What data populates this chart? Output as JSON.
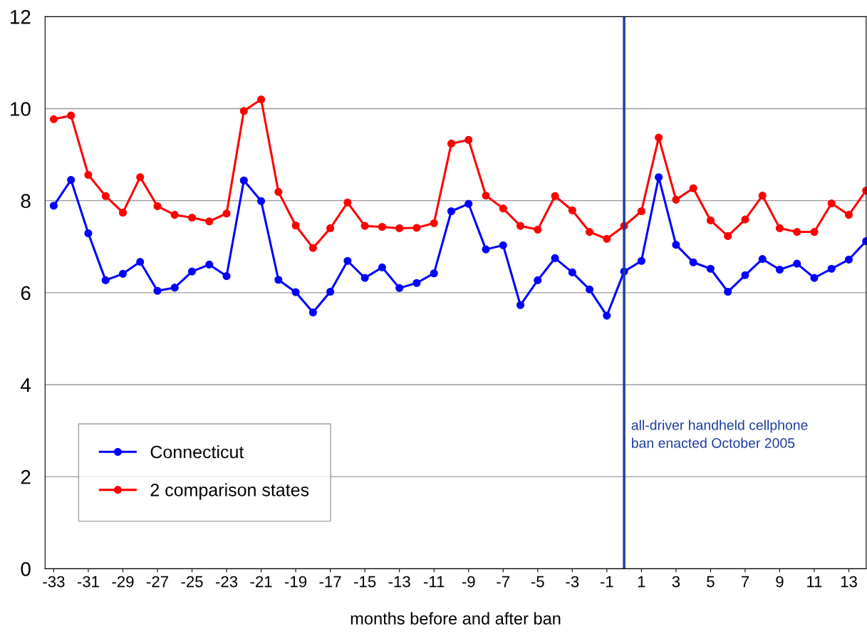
{
  "chart_data": {
    "type": "line",
    "xlabel": "months before and after ban",
    "x": [
      -33,
      -32,
      -31,
      -30,
      -29,
      -28,
      -27,
      -26,
      -25,
      -24,
      -23,
      -22,
      -21,
      -20,
      -19,
      -18,
      -17,
      -16,
      -15,
      -14,
      -13,
      -12,
      -11,
      -10,
      -9,
      -8,
      -7,
      -6,
      -5,
      -4,
      -3,
      -2,
      -1,
      0,
      1,
      2,
      3,
      4,
      5,
      6,
      7,
      8,
      9,
      10,
      11,
      12,
      13,
      14
    ],
    "series": [
      {
        "name": "Connecticut",
        "color": "#0000ff",
        "values": [
          7.89,
          8.45,
          7.29,
          6.27,
          6.41,
          6.67,
          6.04,
          6.11,
          6.46,
          6.61,
          6.36,
          8.44,
          7.99,
          6.28,
          6.01,
          5.57,
          6.02,
          6.69,
          6.32,
          6.55,
          6.1,
          6.21,
          6.42,
          7.77,
          7.93,
          6.94,
          7.03,
          5.73,
          6.27,
          6.75,
          6.44,
          6.07,
          5.5,
          6.46,
          6.69,
          8.51,
          7.04,
          6.66,
          6.52,
          6.02,
          6.38,
          6.73,
          6.5,
          6.63,
          6.32,
          6.52,
          6.72,
          7.12
        ]
      },
      {
        "name": "2 comparison states",
        "color": "#ff0000",
        "values": [
          9.77,
          9.85,
          8.56,
          8.1,
          7.74,
          8.51,
          7.88,
          7.69,
          7.63,
          7.55,
          7.72,
          9.95,
          10.2,
          8.19,
          7.46,
          6.97,
          7.4,
          7.96,
          7.45,
          7.43,
          7.4,
          7.41,
          7.51,
          9.24,
          9.32,
          8.11,
          7.83,
          7.45,
          7.37,
          8.1,
          7.79,
          7.32,
          7.17,
          7.45,
          7.77,
          9.37,
          8.02,
          8.27,
          7.57,
          7.23,
          7.59,
          8.11,
          7.4,
          7.32,
          7.32,
          7.94,
          7.69,
          8.22
        ]
      }
    ],
    "xlim": [
      -33.5,
      14
    ],
    "xticks": [
      -33,
      -31,
      -29,
      -27,
      -25,
      -23,
      -21,
      -19,
      -17,
      -15,
      -13,
      -11,
      -9,
      -7,
      -5,
      -3,
      -1,
      1,
      3,
      5,
      7,
      9,
      11,
      13
    ],
    "ylim": [
      0,
      12
    ],
    "yticks": [
      0,
      2,
      4,
      6,
      8,
      10,
      12
    ],
    "ref_lines": [
      {
        "axis": "x",
        "value": 0,
        "label": "all-driver handheld cellphone\nban enacted October 2005",
        "color": "#1c3c9c"
      }
    ],
    "grid": "y",
    "legend": "bottom left",
    "marker": "circle",
    "line_style": "solid"
  }
}
